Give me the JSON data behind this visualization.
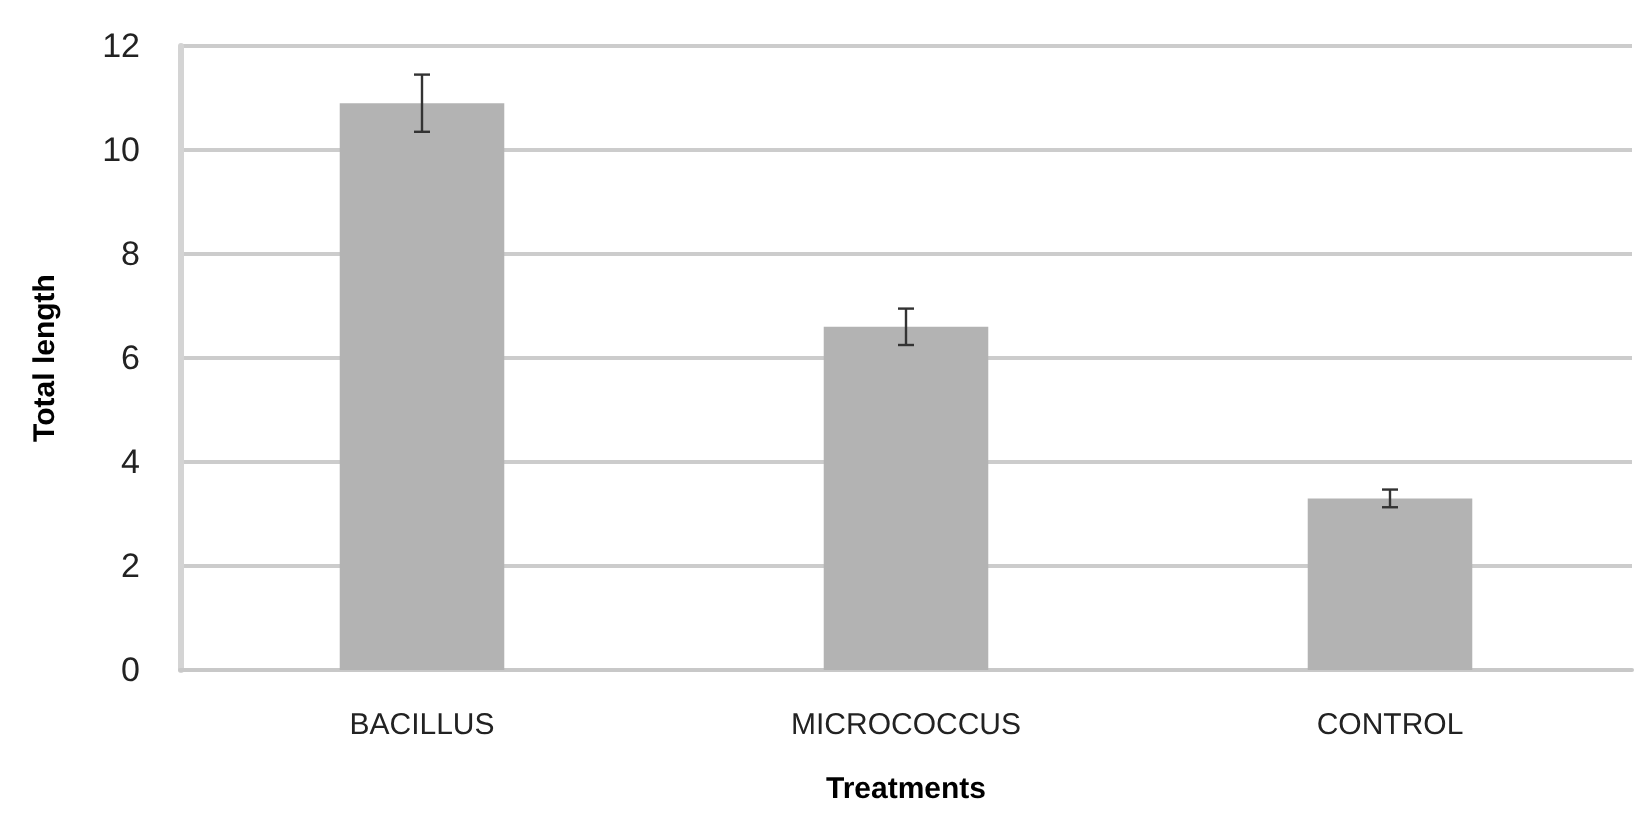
{
  "chart_data": {
    "type": "bar",
    "xlabel": "Treatments",
    "ylabel": "Total length",
    "categories": [
      "BACILLUS",
      "MICROCOCCUS",
      "CONTROL"
    ],
    "values": [
      10.9,
      6.6,
      3.3
    ],
    "errors": [
      0.55,
      0.35,
      0.17
    ],
    "color": "#b3b3b3",
    "ylim": [
      0,
      12
    ],
    "yticks": [
      0,
      2,
      4,
      6,
      8,
      10,
      12
    ],
    "grid": "y"
  }
}
